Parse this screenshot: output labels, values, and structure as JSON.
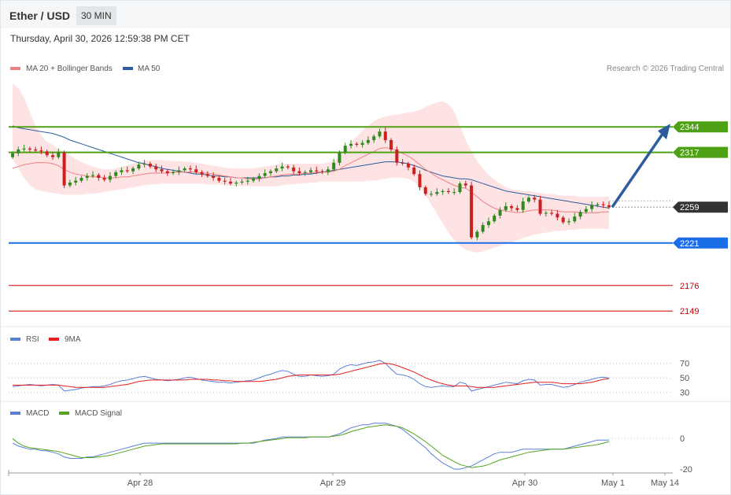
{
  "header": {
    "title": "Ether / USD",
    "timeframe": "30 MIN",
    "datetime": "Thursday, April 30, 2026 12:59:38 PM CET"
  },
  "legends": {
    "price": [
      {
        "label": "MA 20 + Bollinger Bands",
        "color": "#f08080"
      },
      {
        "label": "MA 50",
        "color": "#2d5c9e"
      }
    ],
    "rsi": [
      {
        "label": "RSI",
        "color": "#5b7fd6"
      },
      {
        "label": "9MA",
        "color": "#e31f1f"
      }
    ],
    "macd": [
      {
        "label": "MACD",
        "color": "#5b7fd6"
      },
      {
        "label": "MACD Signal",
        "color": "#55a51c"
      }
    ]
  },
  "copyright": "Research © 2026 Trading Central",
  "chart_data": [
    {
      "type": "candlestick",
      "name": "price",
      "ylim": [
        2135,
        2395
      ],
      "levels": [
        {
          "value": 2344,
          "label": "2344",
          "color": "#4ea114",
          "kind": "resistance"
        },
        {
          "value": 2317,
          "label": "2317",
          "color": "#4ea114",
          "kind": "resistance"
        },
        {
          "value": 2259,
          "label": "2259",
          "color": "#333333",
          "kind": "current"
        },
        {
          "value": 2221,
          "label": "2221",
          "color": "#1b6ee8",
          "kind": "pivot"
        },
        {
          "value": 2176,
          "label": "2176",
          "color": "#cc0000",
          "kind": "support"
        },
        {
          "value": 2149,
          "label": "2149",
          "color": "#cc0000",
          "kind": "support"
        }
      ],
      "close": [
        2316,
        2320,
        2321,
        2320,
        2319,
        2318,
        2314,
        2312,
        2317,
        2282,
        2285,
        2287,
        2290,
        2292,
        2293,
        2290,
        2288,
        2292,
        2296,
        2298,
        2297,
        2300,
        2304,
        2305,
        2302,
        2299,
        2297,
        2295,
        2296,
        2298,
        2300,
        2299,
        2296,
        2294,
        2292,
        2290,
        2287,
        2286,
        2284,
        2285,
        2286,
        2287,
        2289,
        2292,
        2295,
        2297,
        2300,
        2302,
        2301,
        2297,
        2295,
        2296,
        2298,
        2297,
        2296,
        2299,
        2306,
        2317,
        2324,
        2326,
        2325,
        2327,
        2330,
        2334,
        2339,
        2330,
        2320,
        2306,
        2305,
        2301,
        2294,
        2280,
        2273,
        2273,
        2275,
        2276,
        2275,
        2275,
        2284,
        2282,
        2227,
        2233,
        2240,
        2244,
        2250,
        2256,
        2260,
        2258,
        2256,
        2265,
        2269,
        2267,
        2252,
        2253,
        2252,
        2248,
        2243,
        2244,
        2249,
        2254,
        2257,
        2261,
        2262,
        2261,
        2259
      ],
      "open": [
        2312,
        2316,
        2320,
        2321,
        2320,
        2319,
        2318,
        2314,
        2312,
        2317,
        2282,
        2285,
        2287,
        2290,
        2292,
        2293,
        2290,
        2288,
        2292,
        2296,
        2298,
        2297,
        2300,
        2304,
        2305,
        2302,
        2299,
        2297,
        2295,
        2296,
        2298,
        2300,
        2299,
        2296,
        2294,
        2292,
        2290,
        2287,
        2286,
        2284,
        2285,
        2286,
        2287,
        2289,
        2292,
        2295,
        2297,
        2300,
        2302,
        2301,
        2297,
        2295,
        2296,
        2298,
        2297,
        2296,
        2299,
        2306,
        2317,
        2324,
        2326,
        2325,
        2327,
        2330,
        2334,
        2339,
        2330,
        2320,
        2306,
        2305,
        2301,
        2294,
        2280,
        2273,
        2273,
        2275,
        2276,
        2275,
        2275,
        2284,
        2282,
        2227,
        2233,
        2240,
        2244,
        2250,
        2256,
        2260,
        2258,
        2256,
        2265,
        2269,
        2267,
        2252,
        2253,
        2252,
        2248,
        2243,
        2244,
        2249,
        2254,
        2257,
        2261,
        2262,
        2261
      ],
      "ma20": [
        2300,
        2302,
        2304,
        2305,
        2306,
        2306,
        2306,
        2305,
        2303,
        2299,
        2296,
        2294,
        2293,
        2292,
        2291,
        2291,
        2290,
        2290,
        2290,
        2291,
        2291,
        2292,
        2293,
        2294,
        2295,
        2295,
        2295,
        2295,
        2296,
        2296,
        2296,
        2296,
        2296,
        2295,
        2295,
        2294,
        2293,
        2292,
        2291,
        2290,
        2290,
        2289,
        2289,
        2289,
        2290,
        2291,
        2292,
        2293,
        2294,
        2294,
        2294,
        2295,
        2295,
        2296,
        2296,
        2296,
        2297,
        2299,
        2303,
        2306,
        2309,
        2312,
        2315,
        2318,
        2321,
        2322,
        2321,
        2319,
        2316,
        2313,
        2309,
        2304,
        2299,
        2295,
        2291,
        2288,
        2285,
        2282,
        2280,
        2279,
        2275,
        2270,
        2265,
        2261,
        2258,
        2256,
        2255,
        2254,
        2253,
        2254,
        2255,
        2256,
        2256,
        2256,
        2256,
        2255,
        2254,
        2254,
        2254,
        2253,
        2253,
        2253,
        2253,
        2254,
        2254
      ],
      "ma50": [
        2345,
        2343,
        2342,
        2341,
        2340,
        2339,
        2338,
        2337,
        2335,
        2333,
        2330,
        2328,
        2326,
        2324,
        2322,
        2320,
        2318,
        2316,
        2314,
        2312,
        2310,
        2308,
        2306,
        2305,
        2303,
        2302,
        2300,
        2299,
        2298,
        2297,
        2296,
        2295,
        2294,
        2294,
        2293,
        2292,
        2292,
        2291,
        2291,
        2290,
        2290,
        2290,
        2290,
        2290,
        2290,
        2291,
        2291,
        2292,
        2292,
        2293,
        2293,
        2294,
        2294,
        2295,
        2296,
        2297,
        2298,
        2299,
        2300,
        2301,
        2302,
        2303,
        2304,
        2305,
        2306,
        2307,
        2307,
        2307,
        2306,
        2305,
        2303,
        2301,
        2298,
        2296,
        2294,
        2292,
        2291,
        2290,
        2289,
        2289,
        2288,
        2286,
        2284,
        2282,
        2280,
        2278,
        2276,
        2275,
        2274,
        2273,
        2272,
        2271,
        2270,
        2269,
        2268,
        2267,
        2266,
        2265,
        2264,
        2263,
        2262,
        2261,
        2260,
        2259,
        2258
      ],
      "bb_upper": [
        2390,
        2385,
        2375,
        2360,
        2345,
        2335,
        2328,
        2325,
        2320,
        2318,
        2314,
        2310,
        2307,
        2304,
        2302,
        2300,
        2299,
        2299,
        2300,
        2302,
        2303,
        2305,
        2307,
        2308,
        2309,
        2309,
        2309,
        2308,
        2308,
        2308,
        2307,
        2307,
        2306,
        2305,
        2304,
        2303,
        2302,
        2301,
        2300,
        2300,
        2300,
        2300,
        2300,
        2301,
        2302,
        2303,
        2304,
        2305,
        2305,
        2305,
        2305,
        2305,
        2305,
        2305,
        2305,
        2306,
        2308,
        2312,
        2320,
        2328,
        2334,
        2340,
        2345,
        2350,
        2353,
        2355,
        2356,
        2357,
        2358,
        2359,
        2360,
        2362,
        2365,
        2368,
        2370,
        2371,
        2368,
        2360,
        2345,
        2330,
        2318,
        2308,
        2300,
        2293,
        2288,
        2284,
        2280,
        2278,
        2277,
        2276,
        2276,
        2275,
        2274,
        2273,
        2273,
        2272,
        2271,
        2271,
        2271,
        2270,
        2270,
        2270,
        2270,
        2270,
        2270
      ],
      "bb_lower": [
        2310,
        2300,
        2290,
        2282,
        2278,
        2276,
        2275,
        2274,
        2273,
        2272,
        2272,
        2272,
        2272,
        2273,
        2273,
        2274,
        2275,
        2276,
        2277,
        2278,
        2279,
        2280,
        2281,
        2282,
        2283,
        2283,
        2284,
        2284,
        2284,
        2284,
        2284,
        2284,
        2284,
        2284,
        2283,
        2283,
        2283,
        2282,
        2282,
        2281,
        2281,
        2281,
        2281,
        2281,
        2281,
        2281,
        2281,
        2282,
        2283,
        2283,
        2284,
        2284,
        2285,
        2285,
        2286,
        2286,
        2286,
        2286,
        2286,
        2286,
        2286,
        2286,
        2287,
        2287,
        2288,
        2289,
        2290,
        2290,
        2290,
        2289,
        2286,
        2280,
        2272,
        2262,
        2252,
        2242,
        2232,
        2224,
        2218,
        2214,
        2212,
        2211,
        2212,
        2214,
        2216,
        2218,
        2220,
        2222,
        2224,
        2226,
        2228,
        2230,
        2231,
        2232,
        2233,
        2234,
        2234,
        2235,
        2235,
        2236,
        2236,
        2236,
        2236,
        2236,
        2236
      ]
    },
    {
      "type": "line",
      "name": "rsi",
      "ylim": [
        20,
        90
      ],
      "ticks": [
        70,
        50,
        30
      ],
      "series": [
        {
          "name": "RSI",
          "color": "#5b7fd6",
          "values": [
            38,
            39,
            40,
            41,
            40,
            39,
            40,
            41,
            40,
            32,
            33,
            34,
            36,
            37,
            38,
            38,
            39,
            41,
            44,
            46,
            47,
            49,
            51,
            52,
            50,
            48,
            47,
            46,
            47,
            48,
            50,
            51,
            49,
            47,
            46,
            45,
            44,
            44,
            43,
            44,
            45,
            46,
            47,
            50,
            53,
            55,
            58,
            60,
            59,
            55,
            52,
            52,
            54,
            53,
            52,
            53,
            55,
            62,
            66,
            68,
            67,
            69,
            71,
            72,
            74,
            70,
            62,
            55,
            54,
            52,
            48,
            42,
            38,
            37,
            38,
            39,
            38,
            38,
            44,
            42,
            32,
            34,
            36,
            38,
            40,
            42,
            44,
            43,
            42,
            46,
            48,
            47,
            40,
            41,
            41,
            39,
            37,
            38,
            41,
            44,
            46,
            48,
            50,
            51,
            50
          ]
        },
        {
          "name": "9MA",
          "color": "#e31f1f",
          "values": [
            40,
            40,
            40,
            40,
            40,
            40,
            40,
            40,
            40,
            39,
            38,
            37,
            37,
            37,
            37,
            37,
            37,
            38,
            39,
            40,
            41,
            43,
            45,
            46,
            47,
            47,
            47,
            47,
            47,
            47,
            47,
            48,
            48,
            48,
            48,
            47,
            47,
            46,
            46,
            45,
            45,
            45,
            45,
            45,
            46,
            47,
            48,
            50,
            52,
            53,
            54,
            54,
            54,
            54,
            54,
            54,
            54,
            55,
            57,
            59,
            61,
            63,
            65,
            67,
            69,
            70,
            69,
            67,
            64,
            61,
            58,
            54,
            50,
            47,
            44,
            42,
            40,
            39,
            39,
            39,
            38,
            37,
            37,
            37,
            37,
            38,
            39,
            40,
            41,
            42,
            43,
            44,
            44,
            44,
            44,
            43,
            42,
            42,
            42,
            42,
            43,
            44,
            46,
            48,
            49
          ]
        }
      ]
    },
    {
      "type": "line",
      "name": "macd",
      "ylim": [
        -22,
        14
      ],
      "ticks": [
        0,
        -20
      ],
      "series": [
        {
          "name": "MACD",
          "color": "#5b7fd6",
          "values": [
            -3,
            -5,
            -6,
            -7,
            -7,
            -8,
            -8,
            -9,
            -10,
            -12,
            -13,
            -13,
            -13,
            -12,
            -12,
            -11,
            -10,
            -9,
            -8,
            -7,
            -6,
            -5,
            -4,
            -3,
            -3,
            -3,
            -3,
            -3,
            -3,
            -3,
            -3,
            -3,
            -3,
            -3,
            -3,
            -3,
            -3,
            -3,
            -3,
            -3,
            -3,
            -3,
            -3,
            -2,
            -1,
            -0.5,
            0,
            1,
            1,
            1,
            1,
            1,
            1,
            1,
            1,
            1,
            2,
            3,
            5,
            7,
            8,
            9,
            9,
            10,
            10,
            10,
            9,
            8,
            6,
            3,
            0,
            -3,
            -6,
            -10,
            -13,
            -16,
            -18,
            -20,
            -20,
            -19,
            -18,
            -16,
            -14,
            -12,
            -10,
            -9,
            -9,
            -9,
            -8,
            -7,
            -7,
            -7,
            -7,
            -7,
            -7,
            -7,
            -7,
            -6,
            -5,
            -4,
            -3,
            -2,
            -1,
            -1,
            -1
          ]
        },
        {
          "name": "MACD Signal",
          "color": "#55a51c",
          "values": [
            0,
            -3,
            -5,
            -6,
            -6.5,
            -7,
            -7.5,
            -8,
            -8.5,
            -9.5,
            -10.5,
            -11.5,
            -12.5,
            -12.5,
            -12.5,
            -12,
            -11.5,
            -11,
            -10,
            -9,
            -8,
            -7,
            -6,
            -5,
            -4.5,
            -4,
            -3.5,
            -3.5,
            -3.5,
            -3.5,
            -3.5,
            -3.5,
            -3.5,
            -3.5,
            -3.5,
            -3.5,
            -3.5,
            -3.5,
            -3.5,
            -3.5,
            -3,
            -3,
            -2.5,
            -2,
            -1.5,
            -1,
            -0.5,
            0,
            0.5,
            0.5,
            0.5,
            0.5,
            1,
            1,
            1,
            1,
            1.5,
            2,
            3,
            4.5,
            5.5,
            6.5,
            7.5,
            8,
            8.5,
            9,
            8.5,
            8,
            7,
            5,
            3,
            0.5,
            -2,
            -5,
            -8,
            -11,
            -13,
            -15,
            -17,
            -18,
            -19,
            -18.5,
            -18,
            -17,
            -15.5,
            -14,
            -13,
            -12,
            -11,
            -10,
            -9,
            -8.5,
            -8,
            -7.5,
            -7,
            -7,
            -7,
            -6.5,
            -6,
            -5.5,
            -5,
            -4.5,
            -4,
            -3,
            -2
          ]
        }
      ]
    }
  ],
  "xaxis": {
    "labels": [
      "Apr 28",
      "Apr 29",
      "Apr 30",
      "May 1",
      "May 14"
    ]
  }
}
